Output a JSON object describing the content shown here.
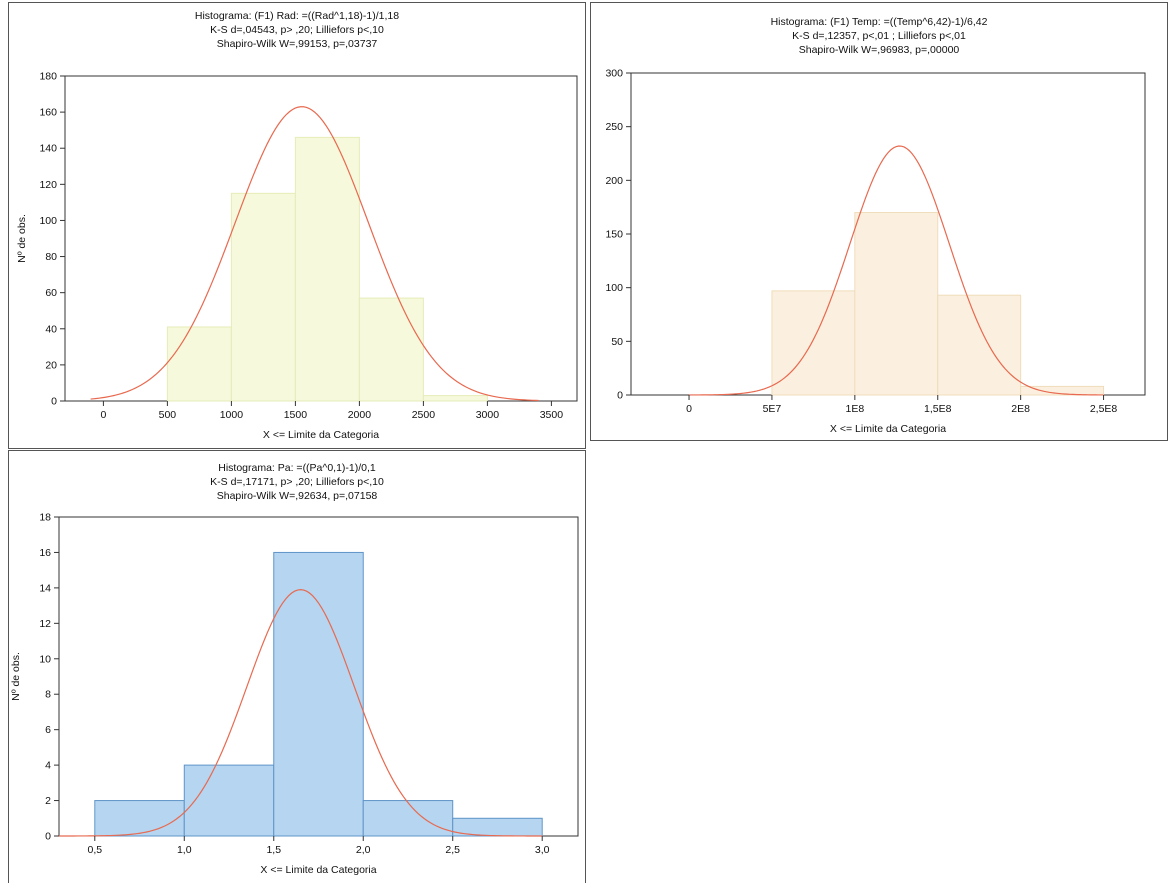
{
  "chart_data": [
    {
      "type": "bar",
      "title": "Histograma: (F1)   Rad: =((Rad^1,18)-1)/1,18",
      "subtitle_lines": [
        "K-S d=,04543, p> ,20; Lilliefors p<,10",
        "Shapiro-Wilk W=,99153, p=,03737"
      ],
      "xlabel": "X <= Limite da Categoria",
      "ylabel": "Nº de obs.",
      "xlim": [
        -300,
        3700
      ],
      "ylim": [
        0,
        180
      ],
      "xticks": [
        0,
        500,
        1000,
        1500,
        2000,
        2500,
        3000,
        3500
      ],
      "xtick_labels": [
        "0",
        "500",
        "1000",
        "1500",
        "2000",
        "2500",
        "3000",
        "3500"
      ],
      "yticks": [
        0,
        20,
        40,
        60,
        80,
        100,
        120,
        140,
        160,
        180
      ],
      "ytick_labels": [
        "0",
        "20",
        "40",
        "60",
        "80",
        "100",
        "120",
        "140",
        "160",
        "180"
      ],
      "bins": [
        [
          500,
          1000,
          41
        ],
        [
          1000,
          1500,
          115
        ],
        [
          1500,
          2000,
          146
        ],
        [
          2000,
          2500,
          57
        ],
        [
          2500,
          3000,
          3
        ]
      ],
      "normal_curve": {
        "mean": 1550,
        "sd": 520,
        "peak": 163,
        "range": [
          -100,
          3400
        ]
      },
      "bar_fill": "#f6f9dc",
      "bar_stroke": "#e6ecb8",
      "curve_color": "#e8694f",
      "grid": false
    },
    {
      "type": "bar",
      "title": "Histograma: (F1)   Temp: =((Temp^6,42)-1)/6,42",
      "subtitle_lines": [
        "K-S d=,12357, p<,01 ; Lilliefors p<,01",
        "Shapiro-Wilk W=,96983, p=,00000"
      ],
      "xlabel": "X <= Limite da Categoria",
      "ylabel": "Nº de obs.",
      "xlim": [
        -35000000,
        275000000
      ],
      "ylim": [
        0,
        300
      ],
      "xticks": [
        0,
        50000000,
        100000000,
        150000000,
        200000000,
        250000000
      ],
      "xtick_labels": [
        "0",
        "5E7",
        "1E8",
        "1,5E8",
        "2E8",
        "2,5E8"
      ],
      "yticks": [
        0,
        50,
        100,
        150,
        200,
        250,
        300
      ],
      "ytick_labels": [
        "0",
        "50",
        "100",
        "150",
        "200",
        "250",
        "300"
      ],
      "bins": [
        [
          50000000,
          100000000,
          97
        ],
        [
          100000000,
          150000000,
          170
        ],
        [
          150000000,
          200000000,
          93
        ],
        [
          200000000,
          250000000,
          8
        ]
      ],
      "normal_curve": {
        "mean": 127000000,
        "sd": 30000000,
        "peak": 232,
        "range": [
          0,
          250000000
        ]
      },
      "bar_fill": "#fbf0df",
      "bar_stroke": "#efdcbb",
      "curve_color": "#e8694f",
      "grid": false
    },
    {
      "type": "bar",
      "title": "Histograma: Pa: =((Pa^0,1)-1)/0,1",
      "subtitle_lines": [
        "K-S d=,17171, p> ,20; Lilliefors p<,10",
        "Shapiro-Wilk W=,92634, p=,07158"
      ],
      "xlabel": "X <= Limite da Categoria",
      "ylabel": "Nº de obs.",
      "xlim": [
        0.3,
        3.2
      ],
      "ylim": [
        0,
        18
      ],
      "xticks": [
        0.5,
        1.0,
        1.5,
        2.0,
        2.5,
        3.0
      ],
      "xtick_labels": [
        "0,5",
        "1,0",
        "1,5",
        "2,0",
        "2,5",
        "3,0"
      ],
      "yticks": [
        0,
        2,
        4,
        6,
        8,
        10,
        12,
        14,
        16,
        18
      ],
      "ytick_labels": [
        "0",
        "2",
        "4",
        "6",
        "8",
        "10",
        "12",
        "14",
        "16",
        "18"
      ],
      "bins": [
        [
          0.5,
          1.0,
          2
        ],
        [
          1.0,
          1.5,
          4
        ],
        [
          1.5,
          2.0,
          16
        ],
        [
          2.0,
          2.5,
          2
        ],
        [
          2.5,
          3.0,
          1
        ]
      ],
      "normal_curve": {
        "mean": 1.65,
        "sd": 0.3,
        "peak": 13.9,
        "range": [
          0.3,
          3.0
        ]
      },
      "bar_fill": "#b5d5f0",
      "bar_stroke": "#5f95c8",
      "curve_color": "#e8694f",
      "grid": false
    }
  ]
}
